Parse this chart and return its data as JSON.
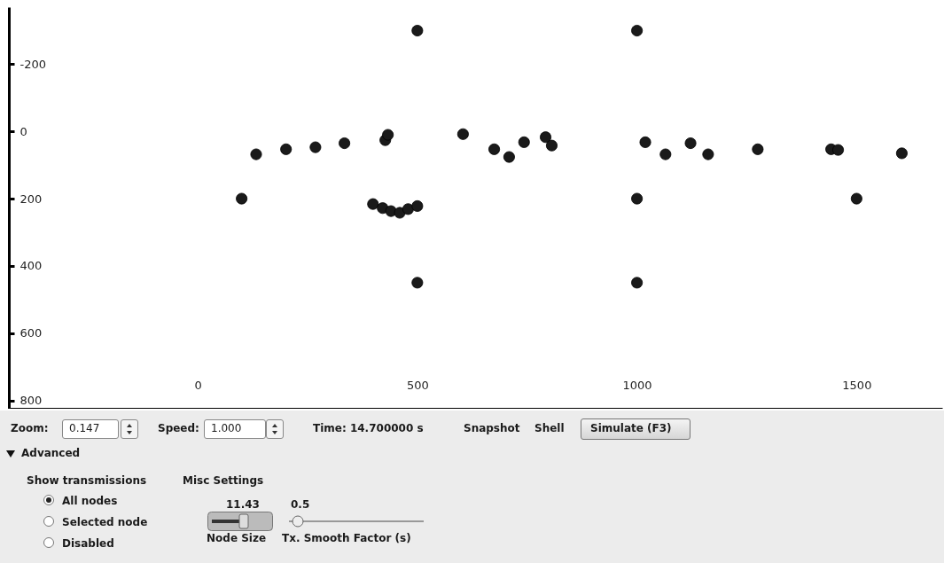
{
  "chart_data": {
    "type": "scatter",
    "marker": "circle",
    "grid": false,
    "xlim": [
      -430,
      1695
    ],
    "ylim": [
      825,
      -370
    ],
    "xticks": [
      0,
      500,
      1000,
      1500
    ],
    "yticks": [
      -200,
      0,
      200,
      400,
      600,
      800
    ],
    "series": [
      {
        "color": "#1a1a1a",
        "x": [
          100,
          133,
          201,
          268,
          334,
          427,
          433,
          500,
          604,
          399,
          421,
          440,
          460,
          479,
          500,
          500,
          675,
          709,
          743,
          792,
          806,
          1000,
          1019,
          1065,
          1122,
          1162,
          1275,
          1442,
          1458,
          1603,
          1500,
          1000,
          1000
        ],
        "values": [
          200,
          68,
          53,
          47,
          35,
          26,
          10,
          -300,
          8,
          216,
          228,
          237,
          242,
          231,
          222,
          450,
          53,
          76,
          32,
          17,
          42,
          -300,
          32,
          68,
          35,
          68,
          53,
          53,
          55,
          65,
          200,
          200,
          450
        ]
      }
    ],
    "annotations": [
      "Zoom:",
      "0.147",
      "Speed:",
      "1.000",
      "Time: 14.700000 s",
      "Snapshot",
      "Shell",
      "Simulate (F3)",
      "Advanced",
      "Show transmissions",
      "Misc Settings",
      "All nodes",
      "Selected node",
      "Disabled",
      "11.43",
      "0.5",
      "Node Size",
      "Tx. Smooth Factor (s)"
    ]
  }
}
